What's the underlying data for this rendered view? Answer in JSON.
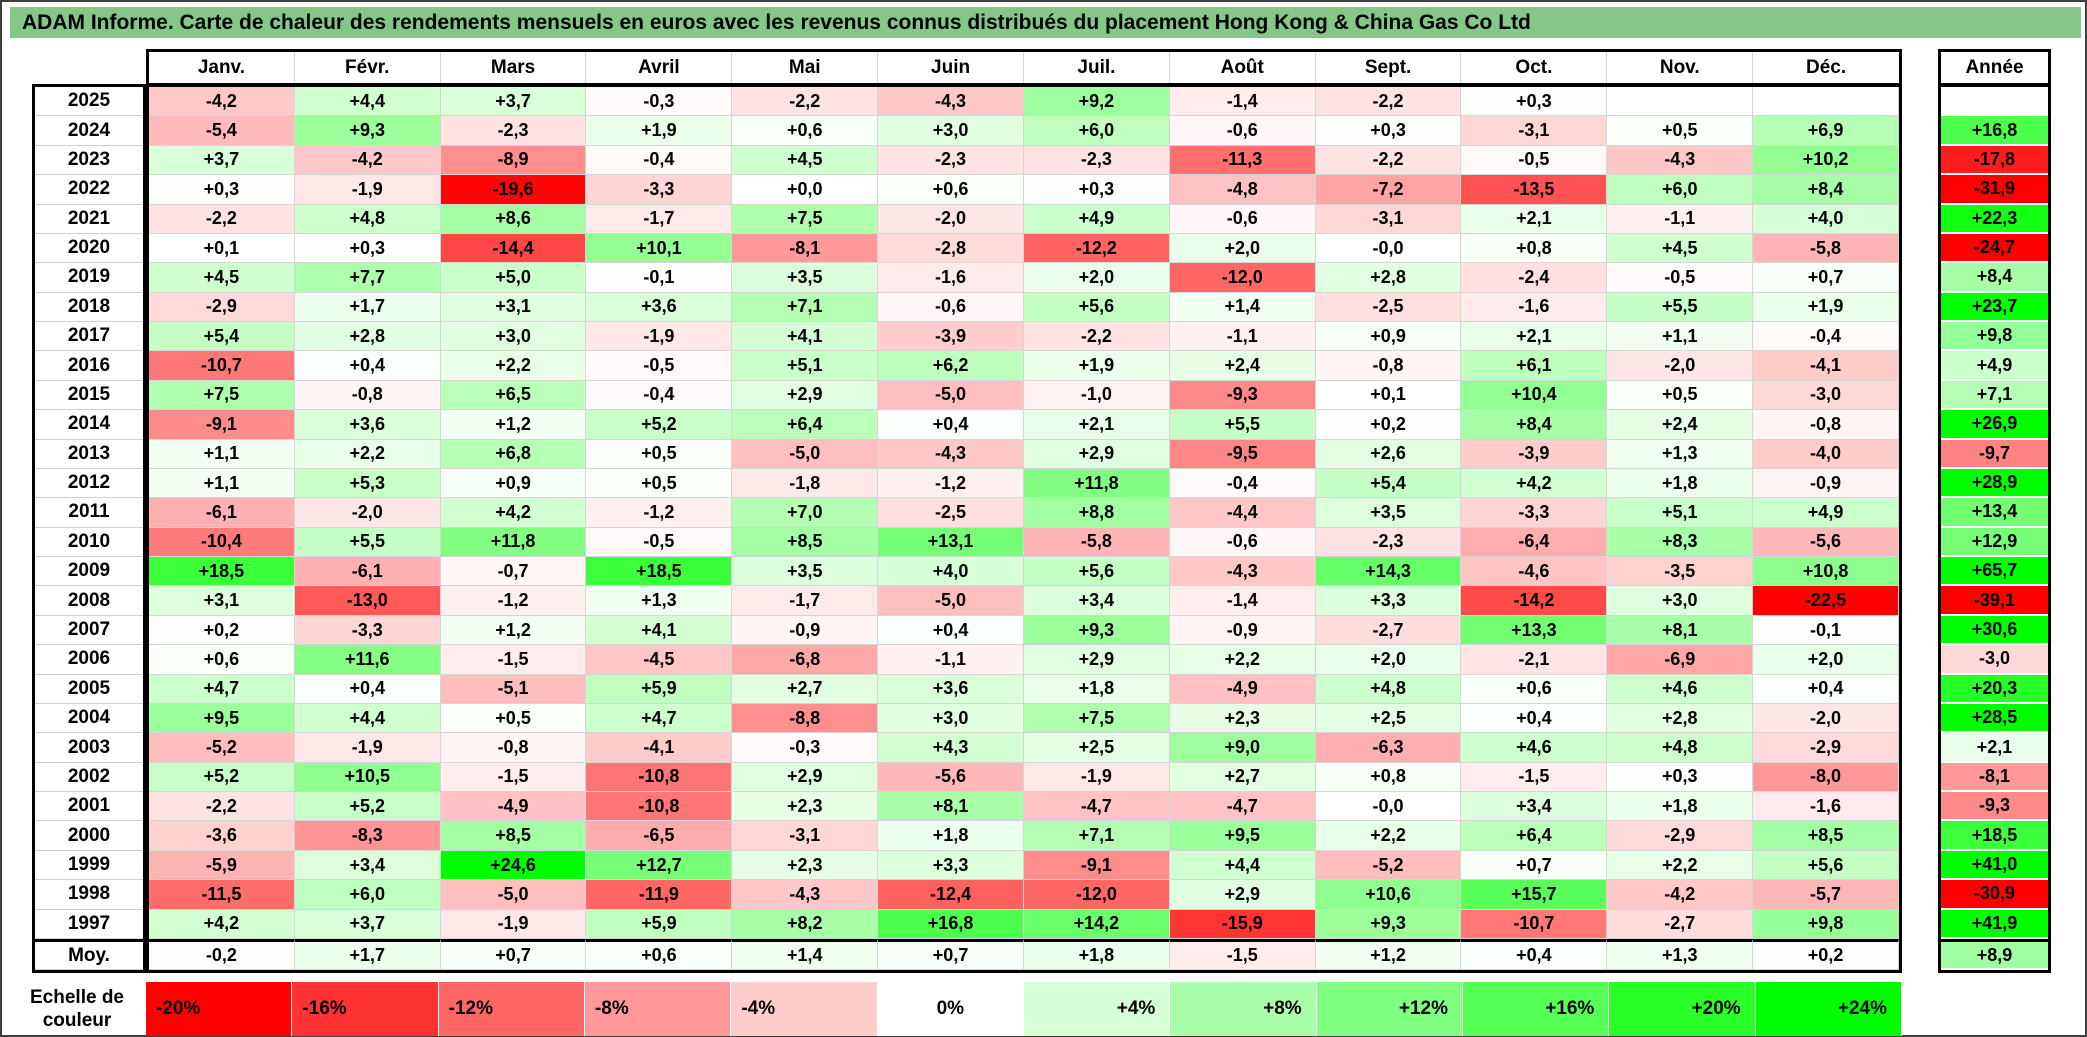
{
  "title": "ADAM Informe. Carte de chaleur des rendements mensuels en euros avec les revenus connus distribués du placement Hong Kong & China Gas Co Ltd",
  "annual_label": "Année",
  "scale": {
    "label": "Echelle de couleur"
  },
  "colors": {
    "title_bg": "#85C787",
    "negative_max": "#FF0000",
    "positive_max": "#00FF00",
    "neutral": "#FFFFFF"
  },
  "chart_data": {
    "type": "heatmap",
    "value_format": "percent, decimal comma, explicit sign",
    "columns": [
      "Janv.",
      "Févr.",
      "Mars",
      "Avril",
      "Mai",
      "Juin",
      "Juil.",
      "Août",
      "Sept.",
      "Oct.",
      "Nov.",
      "Déc."
    ],
    "annual_column": "Année",
    "color_scale": {
      "negative_limit": 20,
      "positive_limit": 24
    },
    "rows": [
      {
        "label": "2025",
        "values": [
          "-4,2",
          "+4,4",
          "+3,7",
          "-0,3",
          "-2,2",
          "-4,3",
          "+9,2",
          "-1,4",
          "-2,2",
          "+0,3",
          "",
          ""
        ],
        "annual": ""
      },
      {
        "label": "2024",
        "values": [
          "-5,4",
          "+9,3",
          "-2,3",
          "+1,9",
          "+0,6",
          "+3,0",
          "+6,0",
          "-0,6",
          "+0,3",
          "-3,1",
          "+0,5",
          "+6,9"
        ],
        "annual": "+16,8"
      },
      {
        "label": "2023",
        "values": [
          "+3,7",
          "-4,2",
          "-8,9",
          "-0,4",
          "+4,5",
          "-2,3",
          "-2,3",
          "-11,3",
          "-2,2",
          "-0,5",
          "-4,3",
          "+10,2"
        ],
        "annual": "-17,8"
      },
      {
        "label": "2022",
        "values": [
          "+0,3",
          "-1,9",
          "-19,6",
          "-3,3",
          "+0,0",
          "+0,6",
          "+0,3",
          "-4,8",
          "-7,2",
          "-13,5",
          "+6,0",
          "+8,4"
        ],
        "annual": "-31,9"
      },
      {
        "label": "2021",
        "values": [
          "-2,2",
          "+4,8",
          "+8,6",
          "-1,7",
          "+7,5",
          "-2,0",
          "+4,9",
          "-0,6",
          "-3,1",
          "+2,1",
          "-1,1",
          "+4,0"
        ],
        "annual": "+22,3"
      },
      {
        "label": "2020",
        "values": [
          "+0,1",
          "+0,3",
          "-14,4",
          "+10,1",
          "-8,1",
          "-2,8",
          "-12,2",
          "+2,0",
          "-0,0",
          "+0,8",
          "+4,5",
          "-5,8"
        ],
        "annual": "-24,7"
      },
      {
        "label": "2019",
        "values": [
          "+4,5",
          "+7,7",
          "+5,0",
          "-0,1",
          "+3,5",
          "-1,6",
          "+2,0",
          "-12,0",
          "+2,8",
          "-2,4",
          "-0,5",
          "+0,7"
        ],
        "annual": "+8,4"
      },
      {
        "label": "2018",
        "values": [
          "-2,9",
          "+1,7",
          "+3,1",
          "+3,6",
          "+7,1",
          "-0,6",
          "+5,6",
          "+1,4",
          "-2,5",
          "-1,6",
          "+5,5",
          "+1,9"
        ],
        "annual": "+23,7"
      },
      {
        "label": "2017",
        "values": [
          "+5,4",
          "+2,8",
          "+3,0",
          "-1,9",
          "+4,1",
          "-3,9",
          "-2,2",
          "-1,1",
          "+0,9",
          "+2,1",
          "+1,1",
          "-0,4"
        ],
        "annual": "+9,8"
      },
      {
        "label": "2016",
        "values": [
          "-10,7",
          "+0,4",
          "+2,2",
          "-0,5",
          "+5,1",
          "+6,2",
          "+1,9",
          "+2,4",
          "-0,8",
          "+6,1",
          "-2,0",
          "-4,1"
        ],
        "annual": "+4,9"
      },
      {
        "label": "2015",
        "values": [
          "+7,5",
          "-0,8",
          "+6,5",
          "-0,4",
          "+2,9",
          "-5,0",
          "-1,0",
          "-9,3",
          "+0,1",
          "+10,4",
          "+0,5",
          "-3,0"
        ],
        "annual": "+7,1"
      },
      {
        "label": "2014",
        "values": [
          "-9,1",
          "+3,6",
          "+1,2",
          "+5,2",
          "+6,4",
          "+0,4",
          "+2,1",
          "+5,5",
          "+0,2",
          "+8,4",
          "+2,4",
          "-0,8"
        ],
        "annual": "+26,9"
      },
      {
        "label": "2013",
        "values": [
          "+1,1",
          "+2,2",
          "+6,8",
          "+0,5",
          "-5,0",
          "-4,3",
          "+2,9",
          "-9,5",
          "+2,6",
          "-3,9",
          "+1,3",
          "-4,0"
        ],
        "annual": "-9,7"
      },
      {
        "label": "2012",
        "values": [
          "+1,1",
          "+5,3",
          "+0,9",
          "+0,5",
          "-1,8",
          "-1,2",
          "+11,8",
          "-0,4",
          "+5,4",
          "+4,2",
          "+1,8",
          "-0,9"
        ],
        "annual": "+28,9"
      },
      {
        "label": "2011",
        "values": [
          "-6,1",
          "-2,0",
          "+4,2",
          "-1,2",
          "+7,0",
          "-2,5",
          "+8,8",
          "-4,4",
          "+3,5",
          "-3,3",
          "+5,1",
          "+4,9"
        ],
        "annual": "+13,4"
      },
      {
        "label": "2010",
        "values": [
          "-10,4",
          "+5,5",
          "+11,8",
          "-0,5",
          "+8,5",
          "+13,1",
          "-5,8",
          "-0,6",
          "-2,3",
          "-6,4",
          "+8,3",
          "-5,6"
        ],
        "annual": "+12,9"
      },
      {
        "label": "2009",
        "values": [
          "+18,5",
          "-6,1",
          "-0,7",
          "+18,5",
          "+3,5",
          "+4,0",
          "+5,6",
          "-4,3",
          "+14,3",
          "-4,6",
          "-3,5",
          "+10,8"
        ],
        "annual": "+65,7"
      },
      {
        "label": "2008",
        "values": [
          "+3,1",
          "-13,0",
          "-1,2",
          "+1,3",
          "-1,7",
          "-5,0",
          "+3,4",
          "-1,4",
          "+3,3",
          "-14,2",
          "+3,0",
          "-22,5"
        ],
        "annual": "-39,1"
      },
      {
        "label": "2007",
        "values": [
          "+0,2",
          "-3,3",
          "+1,2",
          "+4,1",
          "-0,9",
          "+0,4",
          "+9,3",
          "-0,9",
          "-2,7",
          "+13,3",
          "+8,1",
          "-0,1"
        ],
        "annual": "+30,6"
      },
      {
        "label": "2006",
        "values": [
          "+0,6",
          "+11,6",
          "-1,5",
          "-4,5",
          "-6,8",
          "-1,1",
          "+2,9",
          "+2,2",
          "+2,0",
          "-2,1",
          "-6,9",
          "+2,0"
        ],
        "annual": "-3,0"
      },
      {
        "label": "2005",
        "values": [
          "+4,7",
          "+0,4",
          "-5,1",
          "+5,9",
          "+2,7",
          "+3,6",
          "+1,8",
          "-4,9",
          "+4,8",
          "+0,6",
          "+4,6",
          "+0,4"
        ],
        "annual": "+20,3"
      },
      {
        "label": "2004",
        "values": [
          "+9,5",
          "+4,4",
          "+0,5",
          "+4,7",
          "-8,8",
          "+3,0",
          "+7,5",
          "+2,3",
          "+2,5",
          "+0,4",
          "+2,8",
          "-2,0"
        ],
        "annual": "+28,5"
      },
      {
        "label": "2003",
        "values": [
          "-5,2",
          "-1,9",
          "-0,8",
          "-4,1",
          "-0,3",
          "+4,3",
          "+2,5",
          "+9,0",
          "-6,3",
          "+4,6",
          "+4,8",
          "-2,9"
        ],
        "annual": "+2,1"
      },
      {
        "label": "2002",
        "values": [
          "+5,2",
          "+10,5",
          "-1,5",
          "-10,8",
          "+2,9",
          "-5,6",
          "-1,9",
          "+2,7",
          "+0,8",
          "-1,5",
          "+0,3",
          "-8,0"
        ],
        "annual": "-8,1"
      },
      {
        "label": "2001",
        "values": [
          "-2,2",
          "+5,2",
          "-4,9",
          "-10,8",
          "+2,3",
          "+8,1",
          "-4,7",
          "-4,7",
          "-0,0",
          "+3,4",
          "+1,8",
          "-1,6"
        ],
        "annual": "-9,3"
      },
      {
        "label": "2000",
        "values": [
          "-3,6",
          "-8,3",
          "+8,5",
          "-6,5",
          "-3,1",
          "+1,8",
          "+7,1",
          "+9,5",
          "+2,2",
          "+6,4",
          "-2,9",
          "+8,5"
        ],
        "annual": "+18,5"
      },
      {
        "label": "1999",
        "values": [
          "-5,9",
          "+3,4",
          "+24,6",
          "+12,7",
          "+2,3",
          "+3,3",
          "-9,1",
          "+4,4",
          "-5,2",
          "+0,7",
          "+2,2",
          "+5,6"
        ],
        "annual": "+41,0"
      },
      {
        "label": "1998",
        "values": [
          "-11,5",
          "+6,0",
          "-5,0",
          "-11,9",
          "-4,3",
          "-12,4",
          "-12,0",
          "+2,9",
          "+10,6",
          "+15,7",
          "-4,2",
          "-5,7"
        ],
        "annual": "-30,9"
      },
      {
        "label": "1997",
        "values": [
          "+4,2",
          "+3,7",
          "-1,9",
          "+5,9",
          "+8,2",
          "+16,8",
          "+14,2",
          "-15,9",
          "+9,3",
          "-10,7",
          "-2,7",
          "+9,8"
        ],
        "annual": "+41,9"
      }
    ],
    "average_row": {
      "label": "Moy.",
      "values": [
        "-0,2",
        "+1,7",
        "+0,7",
        "+0,6",
        "+1,4",
        "+0,7",
        "+1,8",
        "-1,5",
        "+1,2",
        "+0,4",
        "+1,3",
        "+0,2"
      ],
      "annual": "+8,9"
    },
    "scale_stops": [
      {
        "label": "-20%",
        "value": -20,
        "align": "left"
      },
      {
        "label": "-16%",
        "value": -16,
        "align": "left"
      },
      {
        "label": "-12%",
        "value": -12,
        "align": "left"
      },
      {
        "label": "-8%",
        "value": -8,
        "align": "left"
      },
      {
        "label": "-4%",
        "value": -4,
        "align": "left"
      },
      {
        "label": "0%",
        "value": 0,
        "align": "center"
      },
      {
        "label": "+4%",
        "value": 4,
        "align": "right"
      },
      {
        "label": "+8%",
        "value": 8,
        "align": "right"
      },
      {
        "label": "+12%",
        "value": 12,
        "align": "right"
      },
      {
        "label": "+16%",
        "value": 16,
        "align": "right"
      },
      {
        "label": "+20%",
        "value": 20,
        "align": "right"
      },
      {
        "label": "+24%",
        "value": 24,
        "align": "right"
      }
    ]
  }
}
